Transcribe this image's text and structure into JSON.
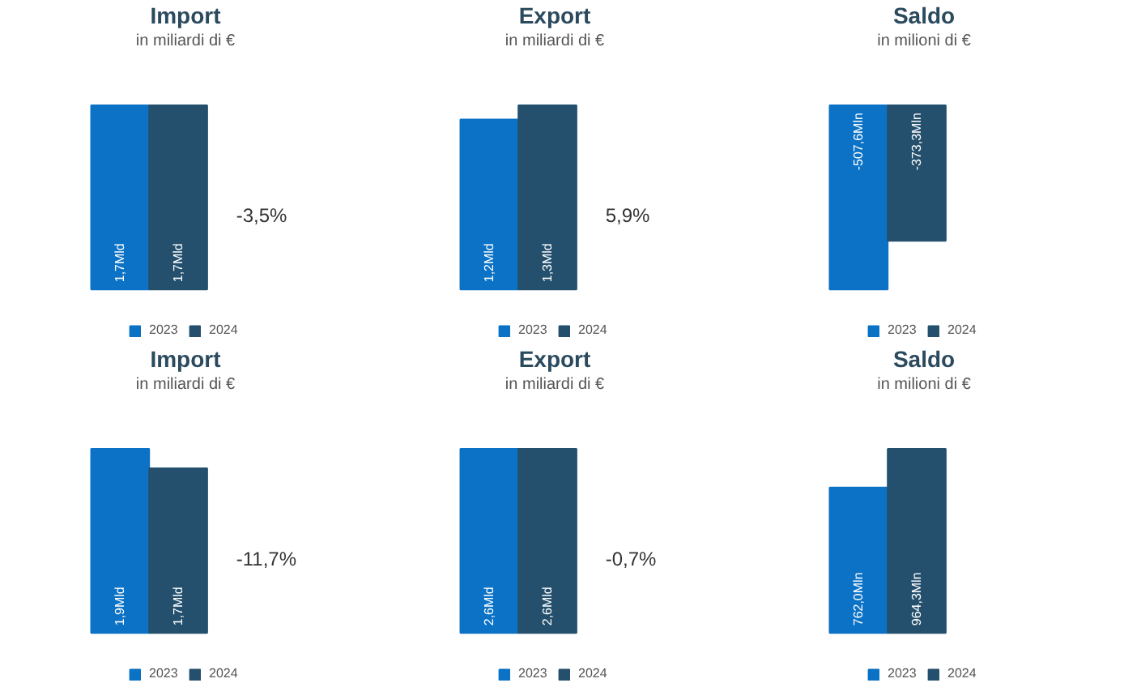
{
  "chart_data": [
    {
      "type": "bar",
      "title": "Import",
      "subtitle": "in miliardi di €",
      "categories": [
        null
      ],
      "legend": "bottom",
      "annotations": [
        "-3,5%"
      ],
      "series": [
        {
          "name": "2023",
          "color": "#0b72c6",
          "values": [
            1.7
          ],
          "value_labels": [
            "1,7Mld"
          ]
        },
        {
          "name": "2024",
          "color": "#24506d",
          "values": [
            1.7
          ],
          "value_labels": [
            "1,7Mld"
          ]
        }
      ]
    },
    {
      "type": "bar",
      "title": "Export",
      "subtitle": "in miliardi di €",
      "categories": [
        null
      ],
      "legend": "bottom",
      "annotations": [
        "5,9%"
      ],
      "series": [
        {
          "name": "2023",
          "color": "#0b72c6",
          "values": [
            1.2
          ],
          "value_labels": [
            "1,2Mld"
          ]
        },
        {
          "name": "2024",
          "color": "#24506d",
          "values": [
            1.3
          ],
          "value_labels": [
            "1,3Mld"
          ]
        }
      ]
    },
    {
      "type": "bar",
      "title": "Saldo",
      "subtitle": "in milioni di €",
      "categories": [
        null
      ],
      "legend": "bottom",
      "series": [
        {
          "name": "2023",
          "color": "#0b72c6",
          "values": [
            -507.6
          ],
          "value_labels": [
            "-507,6Mln"
          ]
        },
        {
          "name": "2024",
          "color": "#24506d",
          "values": [
            -373.3
          ],
          "value_labels": [
            "-373,3Mln"
          ]
        }
      ]
    },
    {
      "type": "bar",
      "title": "Import",
      "subtitle": "in miliardi di €",
      "categories": [
        null
      ],
      "legend": "bottom",
      "annotations": [
        "-11,7%"
      ],
      "series": [
        {
          "name": "2023",
          "color": "#0b72c6",
          "values": [
            1.9
          ],
          "value_labels": [
            "1,9Mld"
          ]
        },
        {
          "name": "2024",
          "color": "#24506d",
          "values": [
            1.7
          ],
          "value_labels": [
            "1,7Mld"
          ]
        }
      ]
    },
    {
      "type": "bar",
      "title": "Export",
      "subtitle": "in miliardi di €",
      "categories": [
        null
      ],
      "legend": "bottom",
      "annotations": [
        "-0,7%"
      ],
      "series": [
        {
          "name": "2023",
          "color": "#0b72c6",
          "values": [
            2.6
          ],
          "value_labels": [
            "2,6Mld"
          ]
        },
        {
          "name": "2024",
          "color": "#24506d",
          "values": [
            2.6
          ],
          "value_labels": [
            "2,6Mld"
          ]
        }
      ]
    },
    {
      "type": "bar",
      "title": "Saldo",
      "subtitle": "in milioni di €",
      "categories": [
        null
      ],
      "legend": "bottom",
      "series": [
        {
          "name": "2023",
          "color": "#0b72c6",
          "values": [
            762.0
          ],
          "value_labels": [
            "762,0Mln"
          ]
        },
        {
          "name": "2024",
          "color": "#24506d",
          "values": [
            964.3
          ],
          "value_labels": [
            "964,3Mln"
          ]
        }
      ]
    }
  ]
}
